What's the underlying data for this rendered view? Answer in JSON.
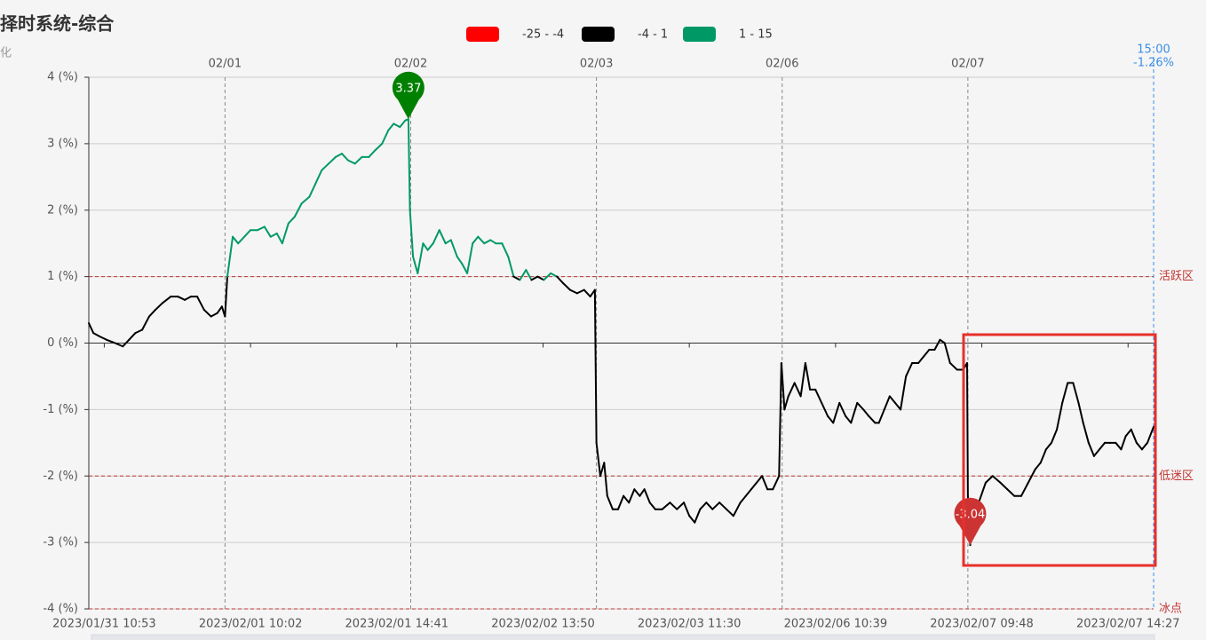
{
  "chart_data": {
    "type": "line",
    "title": "择时系统-综合",
    "subtitle": "化",
    "pieces": [
      {
        "min": -25,
        "max": -4,
        "color": "#ff0000",
        "label": "-25 - -4"
      },
      {
        "min": -4,
        "max": 1,
        "color": "#000000",
        "label": "-4 - 1"
      },
      {
        "min": 1,
        "max": 15,
        "color": "#009966",
        "label": "1 - 15"
      }
    ],
    "xlim": [
      0,
      1376
    ],
    "xticks": [
      {
        "value": 20,
        "label": "2023/01/31 10:53"
      },
      {
        "value": 209,
        "label": "2023/02/01 10:02"
      },
      {
        "value": 398,
        "label": "2023/02/01 14:41"
      },
      {
        "value": 587,
        "label": "2023/02/02 13:50"
      },
      {
        "value": 776,
        "label": "2023/02/03 11:30"
      },
      {
        "value": 965,
        "label": "2023/02/06 10:39"
      },
      {
        "value": 1154,
        "label": "2023/02/07 09:48"
      },
      {
        "value": 1343,
        "label": "2023/02/07 14:27"
      }
    ],
    "day_markers": [
      {
        "value": 176,
        "label": "02/01"
      },
      {
        "value": 416,
        "label": "02/02"
      },
      {
        "value": 656,
        "label": "02/03"
      },
      {
        "value": 896,
        "label": "02/06"
      },
      {
        "value": 1136,
        "label": "02/07"
      }
    ],
    "ylim": [
      -4,
      4
    ],
    "yticks": [
      {
        "value": -4,
        "label": "-4 (%)"
      },
      {
        "value": -3,
        "label": "-3 (%)"
      },
      {
        "value": -2,
        "label": "-2 (%)"
      },
      {
        "value": -1,
        "label": "-1 (%)"
      },
      {
        "value": 0,
        "label": "0 (%)"
      },
      {
        "value": 1,
        "label": "1 (%)"
      },
      {
        "value": 2,
        "label": "2 (%)"
      },
      {
        "value": 3,
        "label": "3 (%)"
      },
      {
        "value": 4,
        "label": "4 (%)"
      }
    ],
    "grid": true,
    "mark_lines": [
      {
        "value": 1,
        "label": "活跃区"
      },
      {
        "value": -2,
        "label": "低迷区"
      },
      {
        "value": -4,
        "label": "冰点"
      }
    ],
    "mark_points": [
      {
        "value": 3.37,
        "color": "#008000"
      },
      {
        "value": -3.04,
        "color": "#cc3333"
      }
    ],
    "pointer": {
      "label": "15:00",
      "value": -1.26,
      "value_label": "-1.26%"
    },
    "x": [
      0,
      6,
      14,
      23,
      34,
      44,
      52,
      60,
      69,
      78,
      86,
      95,
      106,
      115,
      124,
      132,
      140,
      149,
      158,
      166,
      172,
      176,
      179,
      186,
      193,
      201,
      209,
      218,
      227,
      235,
      243,
      250,
      258,
      266,
      275,
      285,
      293,
      301,
      310,
      319,
      327,
      335,
      344,
      353,
      362,
      370,
      379,
      387,
      394,
      402,
      409,
      413,
      415,
      419,
      425,
      432,
      438,
      445,
      453,
      461,
      468,
      476,
      482,
      489,
      496,
      503,
      511,
      519,
      526,
      534,
      542,
      549,
      557,
      565,
      572,
      580,
      588,
      597,
      605,
      613,
      622,
      631,
      640,
      648,
      654,
      656,
      661,
      666,
      670,
      677,
      684,
      691,
      698,
      705,
      712,
      718,
      725,
      732,
      741,
      751,
      760,
      769,
      776,
      783,
      790,
      798,
      806,
      815,
      824,
      833,
      842,
      849,
      856,
      863,
      870,
      877,
      884,
      892,
      895,
      899,
      904,
      912,
      920,
      926,
      932,
      939,
      947,
      955,
      962,
      970,
      978,
      985,
      993,
      1001,
      1008,
      1016,
      1021,
      1028,
      1035,
      1042,
      1049,
      1056,
      1064,
      1072,
      1079,
      1086,
      1093,
      1100,
      1106,
      1113,
      1122,
      1130,
      1135,
      1136,
      1139,
      1143,
      1150,
      1159,
      1168,
      1178,
      1187,
      1196,
      1205,
      1214,
      1223,
      1230,
      1237,
      1244,
      1251,
      1258,
      1265,
      1272,
      1279,
      1285,
      1292,
      1299,
      1306,
      1313,
      1320,
      1327,
      1334,
      1340,
      1347,
      1354,
      1361,
      1368,
      1376
    ],
    "values": [
      0.3,
      0.15,
      0.1,
      0.05,
      0,
      -0.05,
      0.05,
      0.15,
      0.2,
      0.4,
      0.5,
      0.6,
      0.7,
      0.7,
      0.65,
      0.7,
      0.7,
      0.5,
      0.4,
      0.45,
      0.55,
      0.4,
      1.0,
      1.6,
      1.5,
      1.6,
      1.7,
      1.7,
      1.75,
      1.6,
      1.65,
      1.5,
      1.8,
      1.9,
      2.1,
      2.2,
      2.4,
      2.6,
      2.7,
      2.8,
      2.85,
      2.75,
      2.7,
      2.8,
      2.8,
      2.9,
      3.0,
      3.2,
      3.3,
      3.25,
      3.35,
      3.37,
      2.0,
      1.3,
      1.05,
      1.5,
      1.4,
      1.5,
      1.7,
      1.5,
      1.55,
      1.3,
      1.2,
      1.05,
      1.5,
      1.6,
      1.5,
      1.55,
      1.5,
      1.5,
      1.3,
      1.0,
      0.95,
      1.1,
      0.95,
      1.0,
      0.95,
      1.05,
      1.0,
      0.9,
      0.8,
      0.75,
      0.8,
      0.7,
      0.8,
      -1.5,
      -2.0,
      -1.8,
      -2.3,
      -2.5,
      -2.5,
      -2.3,
      -2.4,
      -2.2,
      -2.3,
      -2.2,
      -2.4,
      -2.5,
      -2.5,
      -2.4,
      -2.5,
      -2.4,
      -2.6,
      -2.7,
      -2.5,
      -2.4,
      -2.5,
      -2.4,
      -2.5,
      -2.6,
      -2.4,
      -2.3,
      -2.2,
      -2.1,
      -2.0,
      -2.2,
      -2.2,
      -2.0,
      -0.3,
      -1.0,
      -0.8,
      -0.6,
      -0.8,
      -0.3,
      -0.7,
      -0.7,
      -0.9,
      -1.1,
      -1.2,
      -0.9,
      -1.1,
      -1.2,
      -0.9,
      -1.0,
      -1.1,
      -1.2,
      -1.2,
      -1.0,
      -0.8,
      -0.9,
      -1.0,
      -0.5,
      -0.3,
      -0.3,
      -0.2,
      -0.1,
      -0.1,
      0.05,
      0,
      -0.3,
      -0.4,
      -0.4,
      -0.3,
      -2.3,
      -3.04,
      -2.5,
      -2.4,
      -2.1,
      -2.0,
      -2.1,
      -2.2,
      -2.3,
      -2.3,
      -2.1,
      -1.9,
      -1.8,
      -1.6,
      -1.5,
      -1.3,
      -0.9,
      -0.6,
      -0.6,
      -0.9,
      -1.2,
      -1.5,
      -1.7,
      -1.6,
      -1.5,
      -1.5,
      -1.5,
      -1.6,
      -1.4,
      -1.3,
      -1.5,
      -1.6,
      -1.5,
      -1.26
    ]
  }
}
